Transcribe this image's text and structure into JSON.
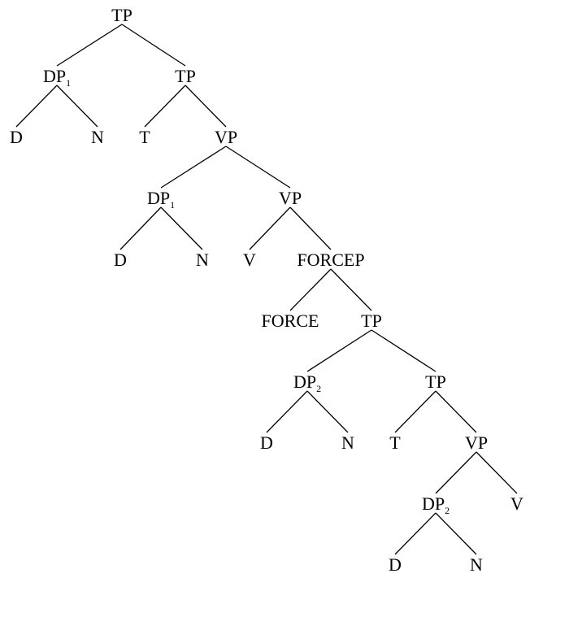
{
  "tree": {
    "nodes": [
      {
        "id": "n0",
        "label": "TP"
      },
      {
        "id": "n1",
        "label": "DP",
        "subscript": "1"
      },
      {
        "id": "n2",
        "label": "TP"
      },
      {
        "id": "n3",
        "label": "D"
      },
      {
        "id": "n4",
        "label": "N"
      },
      {
        "id": "n5",
        "label": "T"
      },
      {
        "id": "n6",
        "label": "VP"
      },
      {
        "id": "n7",
        "label": "DP",
        "subscript": "1"
      },
      {
        "id": "n8",
        "label": "VP"
      },
      {
        "id": "n9",
        "label": "D"
      },
      {
        "id": "n10",
        "label": "N"
      },
      {
        "id": "n11",
        "label": "V"
      },
      {
        "id": "n12",
        "label": "FORCEP"
      },
      {
        "id": "n13",
        "label": "FORCE"
      },
      {
        "id": "n14",
        "label": "TP"
      },
      {
        "id": "n15",
        "label": "DP",
        "subscript": "2"
      },
      {
        "id": "n16",
        "label": "TP"
      },
      {
        "id": "n17",
        "label": "D"
      },
      {
        "id": "n18",
        "label": "N"
      },
      {
        "id": "n19",
        "label": "T"
      },
      {
        "id": "n20",
        "label": "VP"
      },
      {
        "id": "n21",
        "label": "DP",
        "subscript": "2"
      },
      {
        "id": "n22",
        "label": "V"
      },
      {
        "id": "n23",
        "label": "D"
      },
      {
        "id": "n24",
        "label": "N"
      }
    ],
    "edges": [
      [
        "n0",
        "n1"
      ],
      [
        "n0",
        "n2"
      ],
      [
        "n1",
        "n3"
      ],
      [
        "n1",
        "n4"
      ],
      [
        "n2",
        "n5"
      ],
      [
        "n2",
        "n6"
      ],
      [
        "n6",
        "n7"
      ],
      [
        "n6",
        "n8"
      ],
      [
        "n7",
        "n9"
      ],
      [
        "n7",
        "n10"
      ],
      [
        "n8",
        "n11"
      ],
      [
        "n8",
        "n12"
      ],
      [
        "n12",
        "n13"
      ],
      [
        "n12",
        "n14"
      ],
      [
        "n14",
        "n15"
      ],
      [
        "n14",
        "n16"
      ],
      [
        "n15",
        "n17"
      ],
      [
        "n15",
        "n18"
      ],
      [
        "n16",
        "n19"
      ],
      [
        "n16",
        "n20"
      ],
      [
        "n20",
        "n21"
      ],
      [
        "n20",
        "n22"
      ],
      [
        "n21",
        "n23"
      ],
      [
        "n21",
        "n24"
      ]
    ]
  }
}
